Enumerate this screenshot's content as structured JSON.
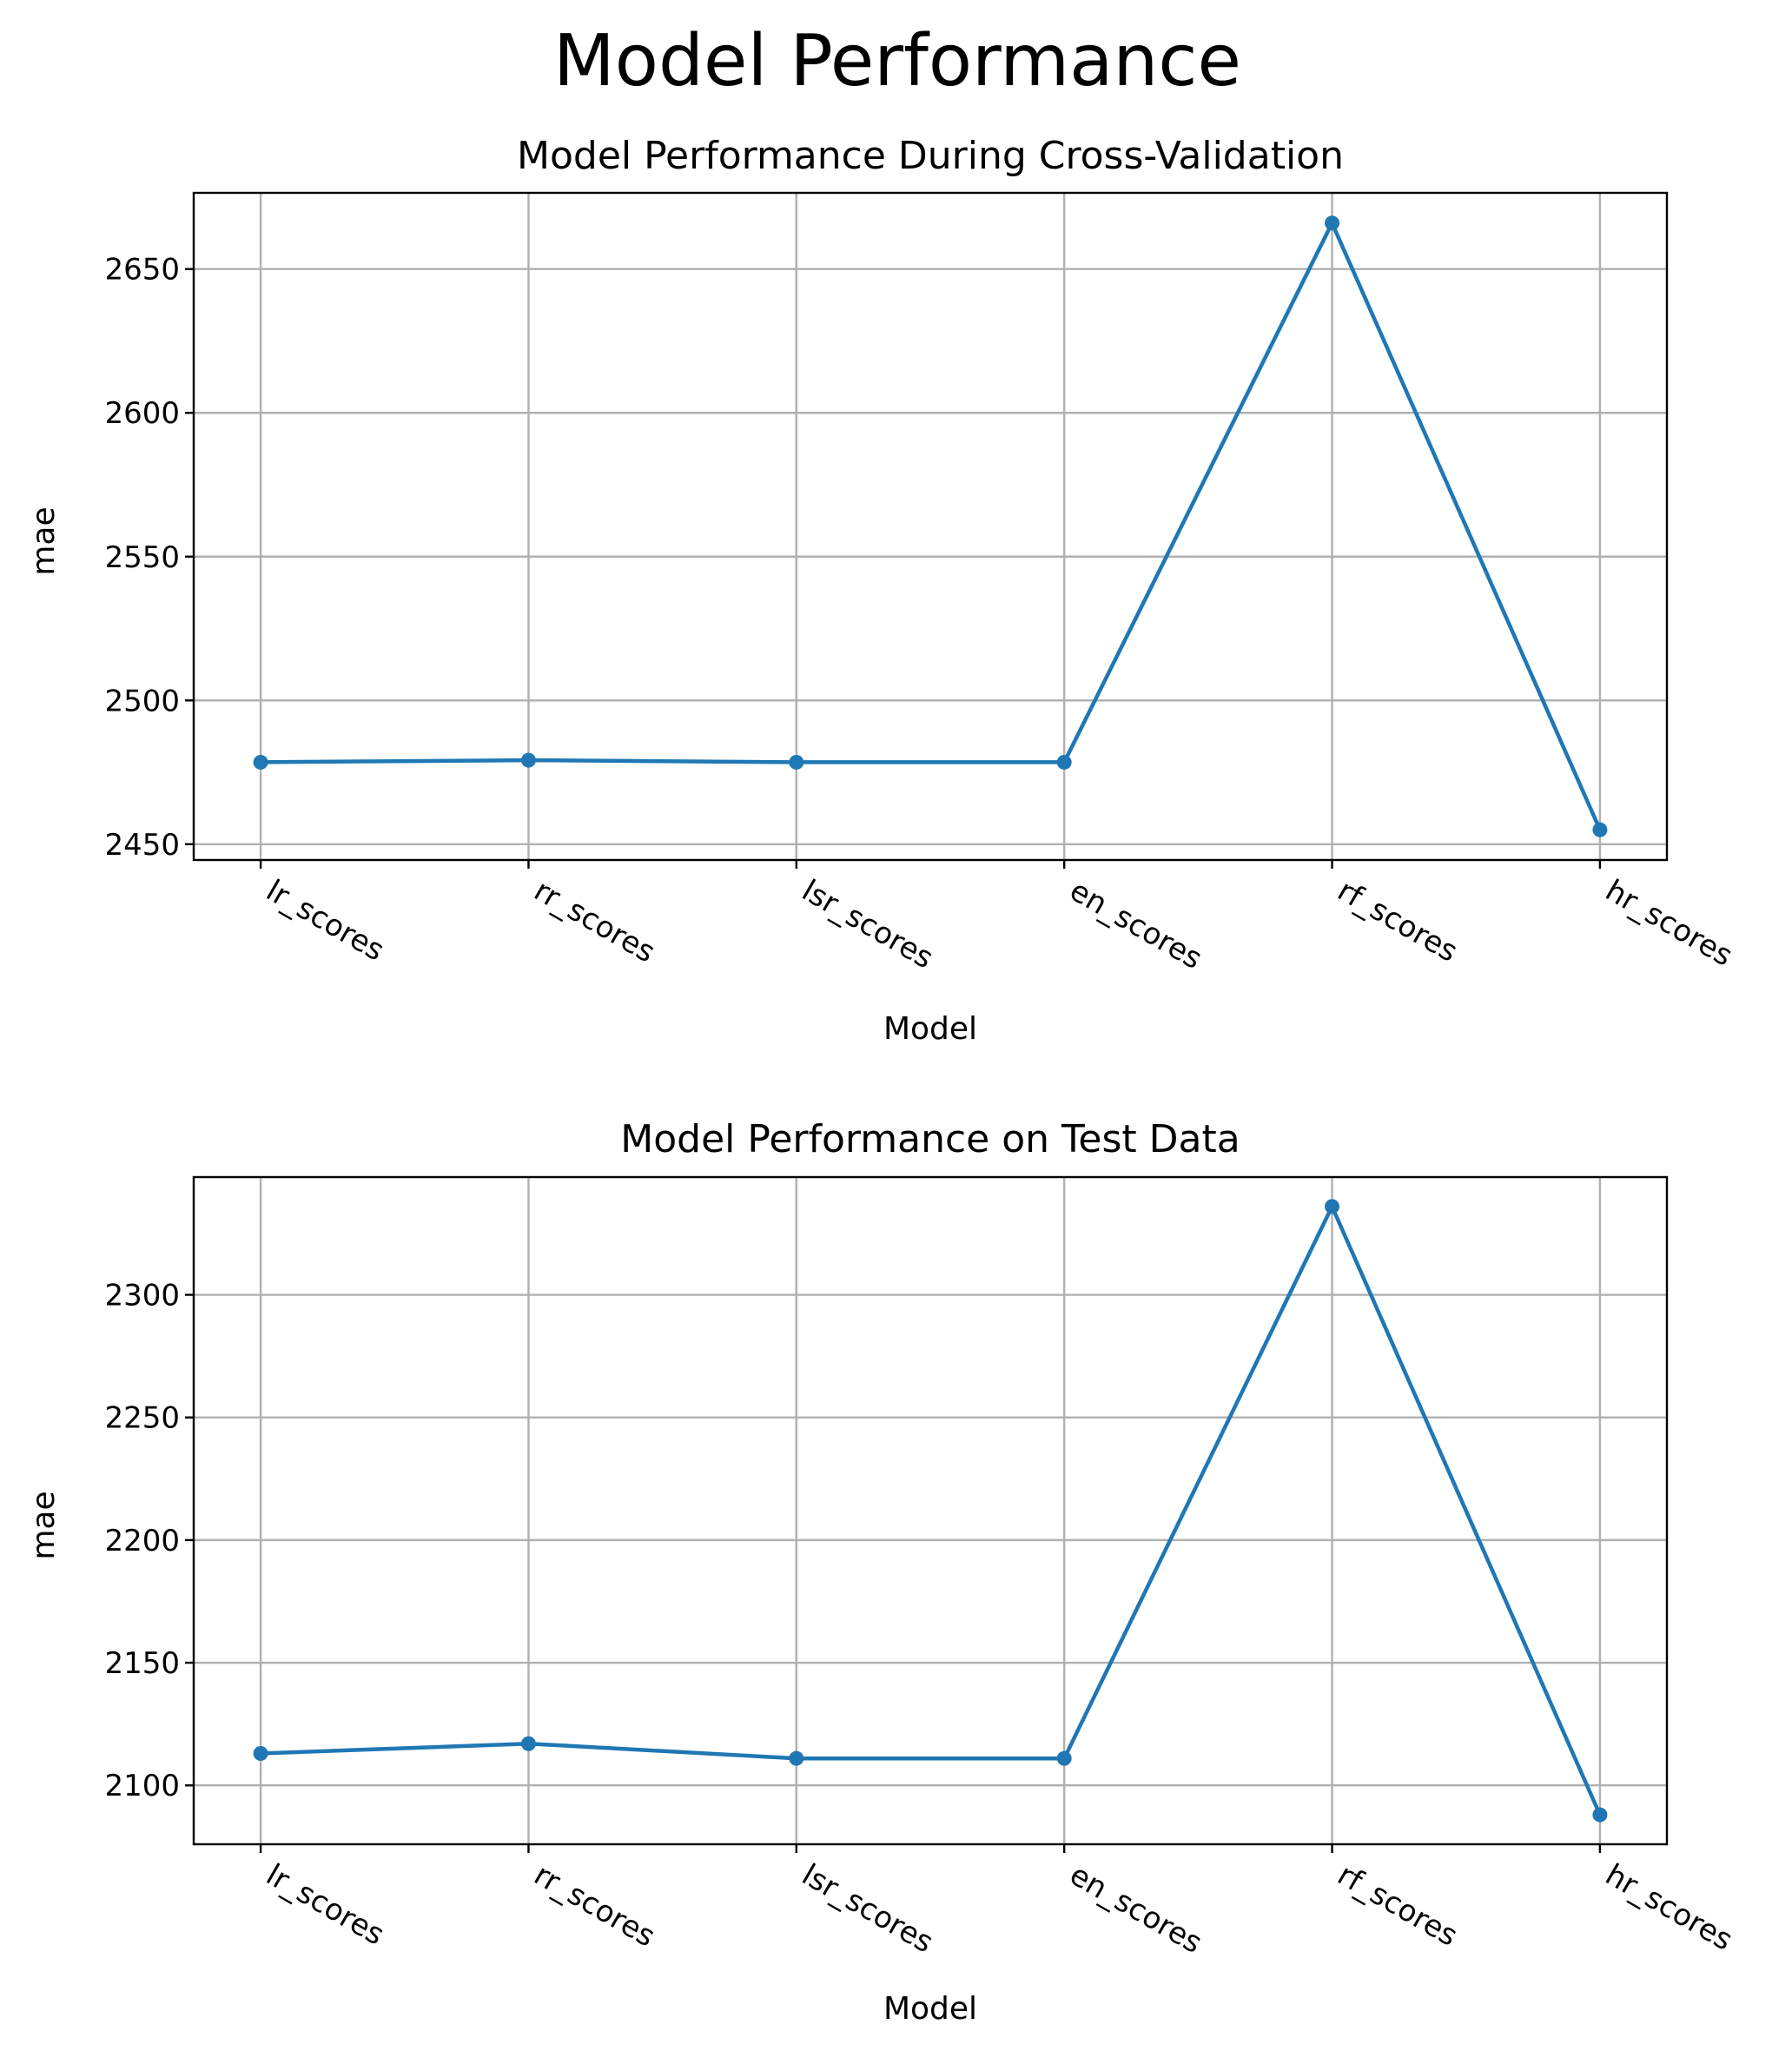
{
  "figure": {
    "suptitle": "Model Performance"
  },
  "chart_data": [
    {
      "type": "line",
      "title": "Model Performance During Cross-Validation",
      "xlabel": "Model",
      "ylabel": "mae",
      "categories": [
        "lr_scores",
        "rr_scores",
        "lsr_scores",
        "en_scores",
        "rf_scores",
        "hr_scores"
      ],
      "series": [
        {
          "values": [
            2478.5,
            2479.2,
            2478.5,
            2478.5,
            2666.0,
            2455.0
          ],
          "color": "#1f77b4",
          "marker": "circle"
        }
      ],
      "yticks": [
        2450,
        2500,
        2550,
        2600,
        2650
      ],
      "ylim": [
        2444.5,
        2676.5
      ],
      "grid": true,
      "legend": false
    },
    {
      "type": "line",
      "title": "Model Performance on Test Data",
      "xlabel": "Model",
      "ylabel": "mae",
      "categories": [
        "lr_scores",
        "rr_scores",
        "lsr_scores",
        "en_scores",
        "rf_scores",
        "hr_scores"
      ],
      "series": [
        {
          "values": [
            2113.0,
            2117.0,
            2111.0,
            2111.0,
            2336.0,
            2088.0
          ],
          "color": "#1f77b4",
          "marker": "circle"
        }
      ],
      "yticks": [
        2100,
        2150,
        2200,
        2250,
        2300
      ],
      "ylim": [
        2076.0,
        2348.0
      ],
      "grid": true,
      "legend": false
    }
  ]
}
